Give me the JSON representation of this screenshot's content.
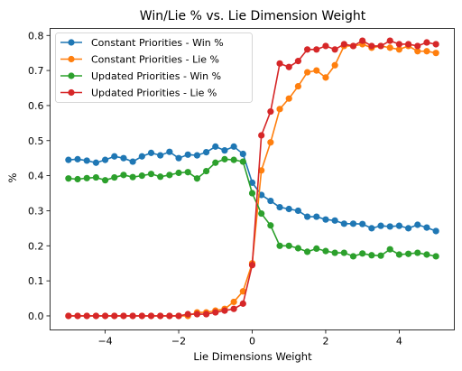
{
  "chart_data": {
    "type": "line",
    "title": "Win/Lie % vs. Lie Dimension Weight",
    "xlabel": "Lie Dimensions Weight",
    "ylabel": "%",
    "xlim": [
      -5.5,
      5.5
    ],
    "ylim": [
      -0.04,
      0.82
    ],
    "xticks": [
      -4,
      -2,
      0,
      2,
      4
    ],
    "yticks": [
      0.0,
      0.1,
      0.2,
      0.3,
      0.4,
      0.5,
      0.6,
      0.7,
      0.8
    ],
    "grid": false,
    "legend_position": "top-left",
    "x": [
      -5.0,
      -4.75,
      -4.5,
      -4.25,
      -4.0,
      -3.75,
      -3.5,
      -3.25,
      -3.0,
      -2.75,
      -2.5,
      -2.25,
      -2.0,
      -1.75,
      -1.5,
      -1.25,
      -1.0,
      -0.75,
      -0.5,
      -0.25,
      0.0,
      0.25,
      0.5,
      0.75,
      1.0,
      1.25,
      1.5,
      1.75,
      2.0,
      2.25,
      2.5,
      2.75,
      3.0,
      3.25,
      3.5,
      3.75,
      4.0,
      4.25,
      4.5,
      4.75,
      5.0
    ],
    "series": [
      {
        "name": "Constant Priorities - Win %",
        "color": "#1f77b4",
        "values": [
          0.445,
          0.447,
          0.443,
          0.437,
          0.445,
          0.455,
          0.45,
          0.44,
          0.455,
          0.465,
          0.458,
          0.468,
          0.45,
          0.46,
          0.458,
          0.467,
          0.483,
          0.472,
          0.483,
          0.462,
          0.38,
          0.345,
          0.328,
          0.31,
          0.305,
          0.3,
          0.283,
          0.283,
          0.275,
          0.272,
          0.263,
          0.263,
          0.262,
          0.25,
          0.257,
          0.255,
          0.257,
          0.25,
          0.26,
          0.252,
          0.242
        ]
      },
      {
        "name": "Constant Priorities - Lie %",
        "color": "#ff7f0e",
        "values": [
          0.0,
          0.0,
          0.0,
          0.0,
          0.0,
          0.0,
          0.0,
          0.0,
          0.0,
          0.0,
          0.0,
          0.0,
          0.0,
          0.0,
          0.01,
          0.01,
          0.015,
          0.02,
          0.04,
          0.07,
          0.15,
          0.415,
          0.495,
          0.59,
          0.62,
          0.655,
          0.695,
          0.7,
          0.68,
          0.715,
          0.77,
          0.77,
          0.775,
          0.765,
          0.77,
          0.765,
          0.76,
          0.77,
          0.755,
          0.755,
          0.75
        ]
      },
      {
        "name": "Updated Priorities - Win %",
        "color": "#2ca02c",
        "values": [
          0.392,
          0.39,
          0.393,
          0.395,
          0.387,
          0.395,
          0.402,
          0.396,
          0.4,
          0.405,
          0.397,
          0.402,
          0.408,
          0.41,
          0.392,
          0.413,
          0.437,
          0.447,
          0.445,
          0.44,
          0.35,
          0.292,
          0.258,
          0.2,
          0.2,
          0.193,
          0.183,
          0.192,
          0.185,
          0.18,
          0.18,
          0.17,
          0.178,
          0.173,
          0.172,
          0.19,
          0.175,
          0.177,
          0.18,
          0.175,
          0.17
        ]
      },
      {
        "name": "Updated Priorities - Lie %",
        "color": "#d62728",
        "values": [
          0.0,
          0.0,
          0.0,
          0.0,
          0.0,
          0.0,
          0.0,
          0.0,
          0.0,
          0.0,
          0.0,
          0.0,
          0.0,
          0.005,
          0.005,
          0.005,
          0.01,
          0.015,
          0.02,
          0.035,
          0.145,
          0.515,
          0.583,
          0.72,
          0.71,
          0.727,
          0.76,
          0.76,
          0.77,
          0.76,
          0.775,
          0.77,
          0.785,
          0.77,
          0.77,
          0.785,
          0.775,
          0.775,
          0.77,
          0.78,
          0.775
        ]
      }
    ]
  }
}
